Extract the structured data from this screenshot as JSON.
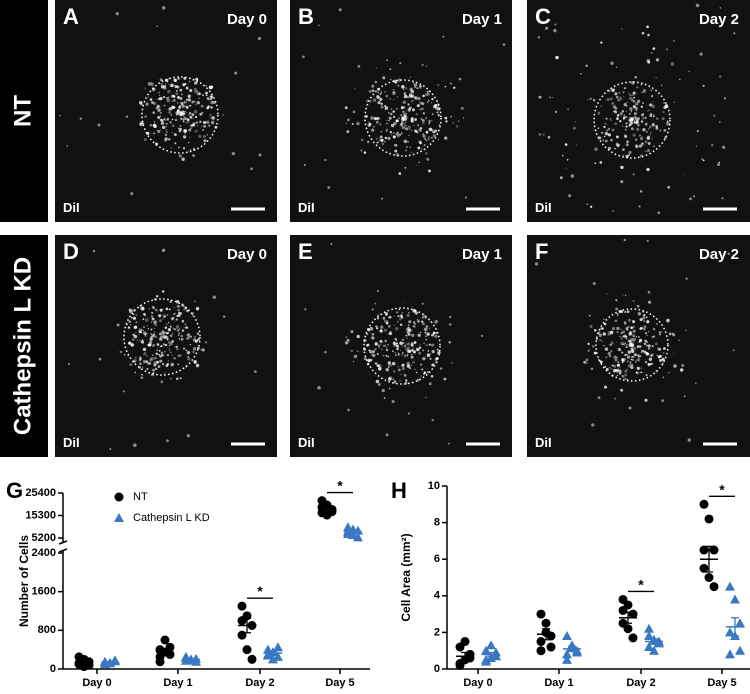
{
  "figure": {
    "row_labels": [
      "NT",
      "Cathepsin L KD"
    ],
    "panels": [
      {
        "letter": "A",
        "day": "Day 0",
        "stain": "DiI"
      },
      {
        "letter": "B",
        "day": "Day 1",
        "stain": "DiI"
      },
      {
        "letter": "C",
        "day": "Day 2",
        "stain": "DiI"
      },
      {
        "letter": "D",
        "day": "Day 0",
        "stain": "DiI"
      },
      {
        "letter": "E",
        "day": "Day 1",
        "stain": "DiI"
      },
      {
        "letter": "F",
        "day": "Day 2",
        "stain": "DiI"
      }
    ]
  },
  "chart_data": [
    {
      "type": "scatter",
      "panel_label": "G",
      "ylabel": "Number of Cells",
      "categories": [
        "Day 0",
        "Day 1",
        "Day 2",
        "Day 5"
      ],
      "series": [
        {
          "name": "NT",
          "color": "#000000",
          "marker": "circle",
          "values": [
            [
              100,
              200,
              150,
              250,
              50,
              80,
              120
            ],
            [
              400,
              600,
              300,
              250,
              350,
              450,
              150
            ],
            [
              1300,
              1100,
              900,
              700,
              400,
              200,
              1000
            ],
            [
              22000,
              20000,
              18000,
              16500,
              15500,
              17000,
              19000
            ]
          ],
          "mean": [
            150,
            350,
            900,
            18000
          ],
          "sem": [
            30,
            55,
            150,
            850
          ]
        },
        {
          "name": "Cathepsin L KD",
          "color": "#3a78c2",
          "marker": "triangle",
          "values": [
            [
              150,
              120,
              180,
              100,
              130,
              160,
              140
            ],
            [
              250,
              200,
              150,
              230,
              180,
              210,
              170
            ],
            [
              400,
              350,
              250,
              300,
              200,
              450,
              280
            ],
            [
              10000,
              9000,
              8500,
              7000,
              6500,
              5500,
              8000
            ]
          ],
          "mean": [
            140,
            200,
            330,
            7800
          ],
          "sem": [
            10,
            13,
            32,
            600
          ]
        }
      ],
      "ylim": [
        0,
        2400
      ],
      "yticks": [
        0,
        800,
        1600,
        2400
      ],
      "y_break": {
        "ylim": [
          5200,
          25400
        ],
        "yticks": [
          5200,
          15300,
          25400
        ]
      },
      "annotations": [
        {
          "category": "Day 2",
          "label": "*"
        },
        {
          "category": "Day 5",
          "label": "*"
        }
      ],
      "legend": "top-left"
    },
    {
      "type": "scatter",
      "panel_label": "H",
      "ylabel": "Cell Area (mm²)",
      "categories": [
        "Day 0",
        "Day 1",
        "Day 2",
        "Day 5"
      ],
      "series": [
        {
          "name": "NT",
          "color": "#000000",
          "marker": "circle",
          "values": [
            [
              0.3,
              0.5,
              0.8,
              1.2,
              1.5,
              0.6,
              0.2
            ],
            [
              3.0,
              2.5,
              1.8,
              1.5,
              2.0,
              1.2,
              1.0
            ],
            [
              3.8,
              3.5,
              3.0,
              2.5,
              2.2,
              1.7,
              3.2
            ],
            [
              9.0,
              8.2,
              6.5,
              5.5,
              5.0,
              4.5,
              6.5
            ]
          ],
          "mean": [
            0.7,
            1.9,
            2.8,
            6.0
          ],
          "sem": [
            0.2,
            0.3,
            0.3,
            0.7
          ]
        },
        {
          "name": "Cathepsin L KD",
          "color": "#3a78c2",
          "marker": "triangle",
          "values": [
            [
              0.4,
              0.6,
              0.9,
              1.0,
              1.3,
              0.7,
              0.5
            ],
            [
              1.8,
              1.3,
              1.0,
              0.8,
              1.2,
              0.9,
              0.5
            ],
            [
              2.2,
              1.6,
              1.4,
              1.2,
              1.0,
              1.5,
              1.8
            ],
            [
              4.5,
              3.8,
              2.5,
              2.0,
              1.8,
              1.0,
              0.8
            ]
          ],
          "mean": [
            0.8,
            1.1,
            1.5,
            2.3
          ],
          "sem": [
            0.1,
            0.15,
            0.15,
            0.5
          ]
        }
      ],
      "ylim": [
        0,
        10
      ],
      "yticks": [
        0,
        2,
        4,
        6,
        8,
        10
      ],
      "annotations": [
        {
          "category": "Day 2",
          "label": "*"
        },
        {
          "category": "Day 5",
          "label": "*"
        }
      ]
    }
  ]
}
